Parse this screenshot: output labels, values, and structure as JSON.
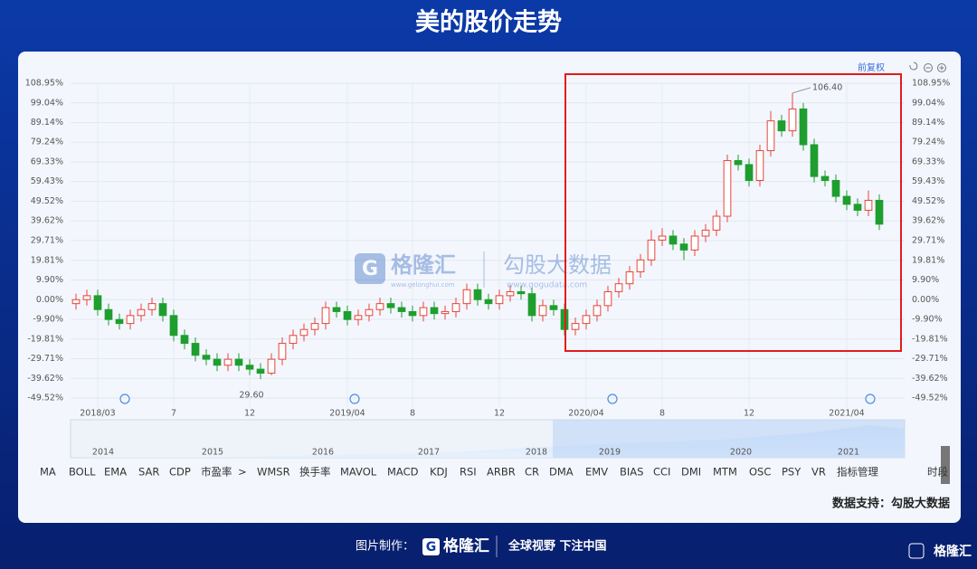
{
  "chart_data": {
    "type": "candlestick",
    "title": "美的股价走势",
    "adjust_label": "前复权",
    "categories": [
      null,
      null,
      "2018/03",
      null,
      null,
      null,
      null,
      null,
      null,
      "7",
      null,
      null,
      null,
      null,
      null,
      null,
      "12",
      null,
      null,
      null,
      null,
      null,
      null,
      null,
      null,
      "2019/04",
      null,
      null,
      null,
      null,
      null,
      "8",
      null,
      null,
      null,
      null,
      null,
      null,
      null,
      "12",
      null,
      null,
      null,
      null,
      null,
      null,
      null,
      "2020/04",
      null,
      null,
      null,
      null,
      null,
      null,
      "8",
      null,
      null,
      null,
      null,
      null,
      null,
      null,
      "12",
      null,
      null,
      null,
      null,
      null,
      null,
      null,
      null,
      "2021/04",
      null,
      null,
      null
    ],
    "open": [
      -2,
      0,
      2,
      -5,
      -10,
      -12,
      -8,
      -5,
      -2,
      -8,
      -18,
      -22,
      -28,
      -30,
      -33,
      -30,
      -33,
      -35,
      -37,
      -30,
      -22,
      -18,
      -15,
      -12,
      -4,
      -6,
      -10,
      -8,
      -5,
      -2,
      -4,
      -6,
      -8,
      -4,
      -7,
      -6,
      -2,
      5,
      0,
      -2,
      2,
      4,
      3,
      -8,
      -3,
      -5,
      -15,
      -12,
      -8,
      -3,
      4,
      8,
      14,
      20,
      30,
      32,
      28,
      25,
      32,
      35,
      42,
      70,
      68,
      60,
      75,
      90,
      85,
      96,
      78,
      62,
      60,
      52,
      48,
      45,
      50
    ],
    "high": [
      3,
      5,
      5,
      -2,
      -7,
      -5,
      -2,
      1,
      1,
      -5,
      -15,
      -19,
      -25,
      -27,
      -27,
      -27,
      -30,
      -32,
      -27,
      -19,
      -15,
      -12,
      -9,
      -1,
      -1,
      -3,
      -5,
      -2,
      1,
      1,
      -1,
      -3,
      -1,
      -1,
      -3,
      1,
      8,
      8,
      3,
      5,
      7,
      7,
      6,
      0,
      0,
      -2,
      -9,
      -5,
      0,
      7,
      11,
      17,
      23,
      35,
      36,
      35,
      31,
      35,
      38,
      45,
      73,
      73,
      71,
      78,
      95,
      93,
      104,
      99,
      81,
      65,
      63,
      55,
      51,
      55,
      53
    ],
    "low": [
      -5,
      -3,
      -8,
      -13,
      -15,
      -15,
      -11,
      -8,
      -11,
      -21,
      -25,
      -31,
      -33,
      -36,
      -36,
      -36,
      -38,
      -40,
      -38,
      -33,
      -25,
      -21,
      -18,
      -15,
      -9,
      -13,
      -13,
      -11,
      -8,
      -7,
      -9,
      -11,
      -11,
      -10,
      -10,
      -9,
      -5,
      -3,
      -5,
      -5,
      -1,
      0,
      -11,
      -11,
      -8,
      -18,
      -18,
      -15,
      -11,
      -6,
      1,
      5,
      11,
      17,
      27,
      25,
      20,
      22,
      29,
      32,
      39,
      65,
      57,
      57,
      72,
      82,
      82,
      75,
      59,
      57,
      49,
      45,
      42,
      42,
      35
    ],
    "close": [
      0,
      2,
      -5,
      -10,
      -12,
      -8,
      -5,
      -2,
      -8,
      -18,
      -22,
      -28,
      -30,
      -33,
      -30,
      -33,
      -35,
      -37,
      -30,
      -22,
      -18,
      -15,
      -12,
      -4,
      -6,
      -10,
      -8,
      -5,
      -2,
      -4,
      -6,
      -8,
      -4,
      -7,
      -6,
      -2,
      5,
      0,
      -2,
      2,
      4,
      3,
      -8,
      -3,
      -5,
      -15,
      -12,
      -8,
      -3,
      4,
      8,
      14,
      20,
      30,
      32,
      28,
      25,
      32,
      35,
      42,
      70,
      68,
      60,
      75,
      90,
      85,
      96,
      78,
      62,
      60,
      52,
      48,
      45,
      50,
      38
    ],
    "up_color": "#e8443a",
    "down_color": "#1e9e2e",
    "max_label": "106.40",
    "min_label": "29.60",
    "ylim": [
      -49.52,
      108.95
    ],
    "yticks": [
      {
        "value": 108.95,
        "label": "108.95%"
      },
      {
        "value": 99.04,
        "label": "99.04%"
      },
      {
        "value": 89.14,
        "label": "89.14%"
      },
      {
        "value": 79.24,
        "label": "79.24%"
      },
      {
        "value": 69.33,
        "label": "69.33%"
      },
      {
        "value": 59.43,
        "label": "59.43%"
      },
      {
        "value": 49.52,
        "label": "49.52%"
      },
      {
        "value": 39.62,
        "label": "39.62%"
      },
      {
        "value": 29.71,
        "label": "29.71%"
      },
      {
        "value": 19.81,
        "label": "19.81%"
      },
      {
        "value": 9.9,
        "label": "9.90%"
      },
      {
        "value": 0,
        "label": "0.00%"
      },
      {
        "value": -9.9,
        "label": "-9.90%"
      },
      {
        "value": -19.81,
        "label": "-19.81%"
      },
      {
        "value": -29.71,
        "label": "-29.71%"
      },
      {
        "value": -39.62,
        "label": "-39.62%"
      },
      {
        "value": -49.52,
        "label": "-49.52%"
      }
    ],
    "grid": true,
    "navigator_years": [
      "2014",
      "2015",
      "2016",
      "2017",
      "2018",
      "2019",
      "2020",
      "2021"
    ],
    "toolbar": [
      "MA",
      "BOLL",
      "EMA",
      "SAR",
      "CDP",
      "市盈率",
      ">",
      "WMSR",
      "换手率",
      "MAVOL",
      "MACD",
      "KDJ",
      "RSI",
      "ARBR",
      "CR",
      "DMA",
      "EMV",
      "BIAS",
      "CCI",
      "DMI",
      "MTM",
      "OSC",
      "PSY",
      "VR",
      "指标管理",
      "时段"
    ],
    "watermark": {
      "brand": "格隆汇",
      "site": "www.gelonghui.com",
      "data_brand": "勾股大数据",
      "data_site": "www.gogudata.com"
    },
    "source": "数据支持：勾股大数据",
    "footer": {
      "made_by": "图片制作：",
      "brand": "格隆汇",
      "slogan": "全球视野 下注中国",
      "corner_brand": "格隆汇"
    }
  }
}
